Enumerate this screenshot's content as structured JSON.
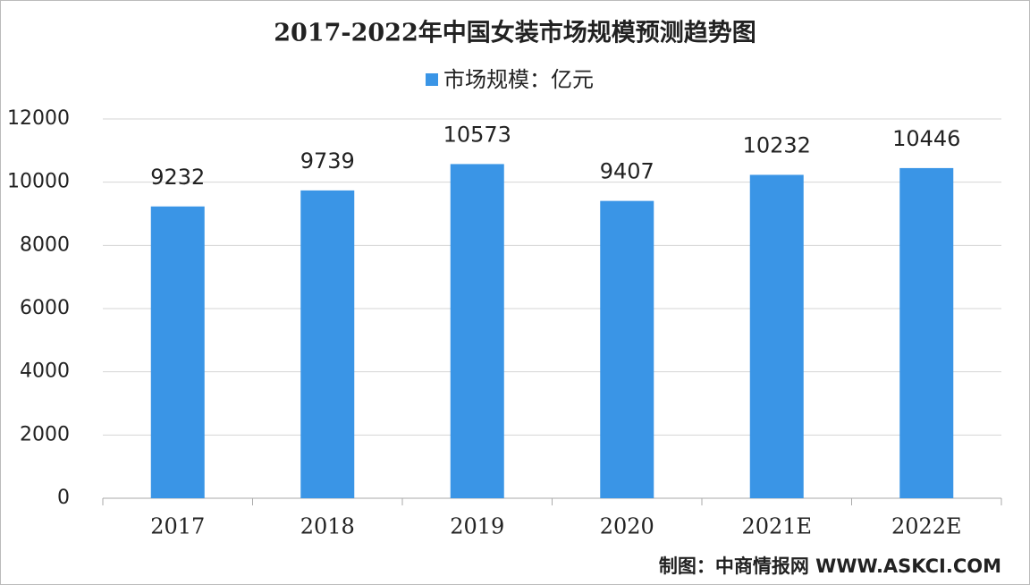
{
  "chart_data": {
    "type": "bar",
    "title": "2017-2022年中国女装市场规模预测趋势图",
    "categories": [
      "2017",
      "2018",
      "2019",
      "2020",
      "2021E",
      "2022E"
    ],
    "series": [
      {
        "name": "市场规模：亿元",
        "color": "#3a95e6",
        "values": [
          9232,
          9739,
          10573,
          9407,
          10232,
          10446
        ]
      }
    ],
    "ylim": [
      0,
      12000
    ],
    "yticks": [
      0,
      2000,
      4000,
      6000,
      8000,
      10000,
      12000
    ],
    "grid": true,
    "legend": "top",
    "source": "制图：中商情报网 WWW.ASKCI.COM"
  }
}
